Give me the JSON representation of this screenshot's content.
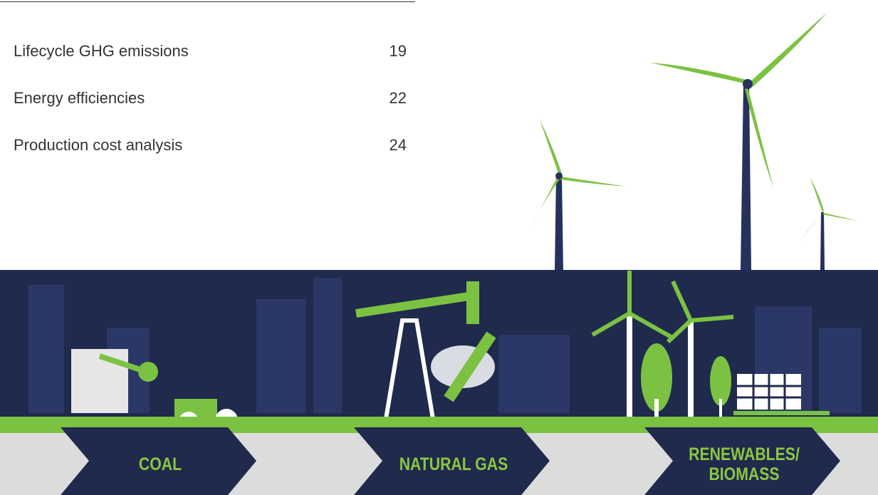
{
  "toc": [
    {
      "title": "Lifecycle GHG emissions",
      "page": 19
    },
    {
      "title": "Energy efficiencies",
      "page": 22
    },
    {
      "title": "Production cost analysis",
      "page": 24
    }
  ],
  "banner": {
    "labels": [
      [
        "COAL"
      ],
      [
        "NATURAL GAS"
      ],
      [
        "RENEWABLES/",
        "BIOMASS"
      ]
    ]
  }
}
